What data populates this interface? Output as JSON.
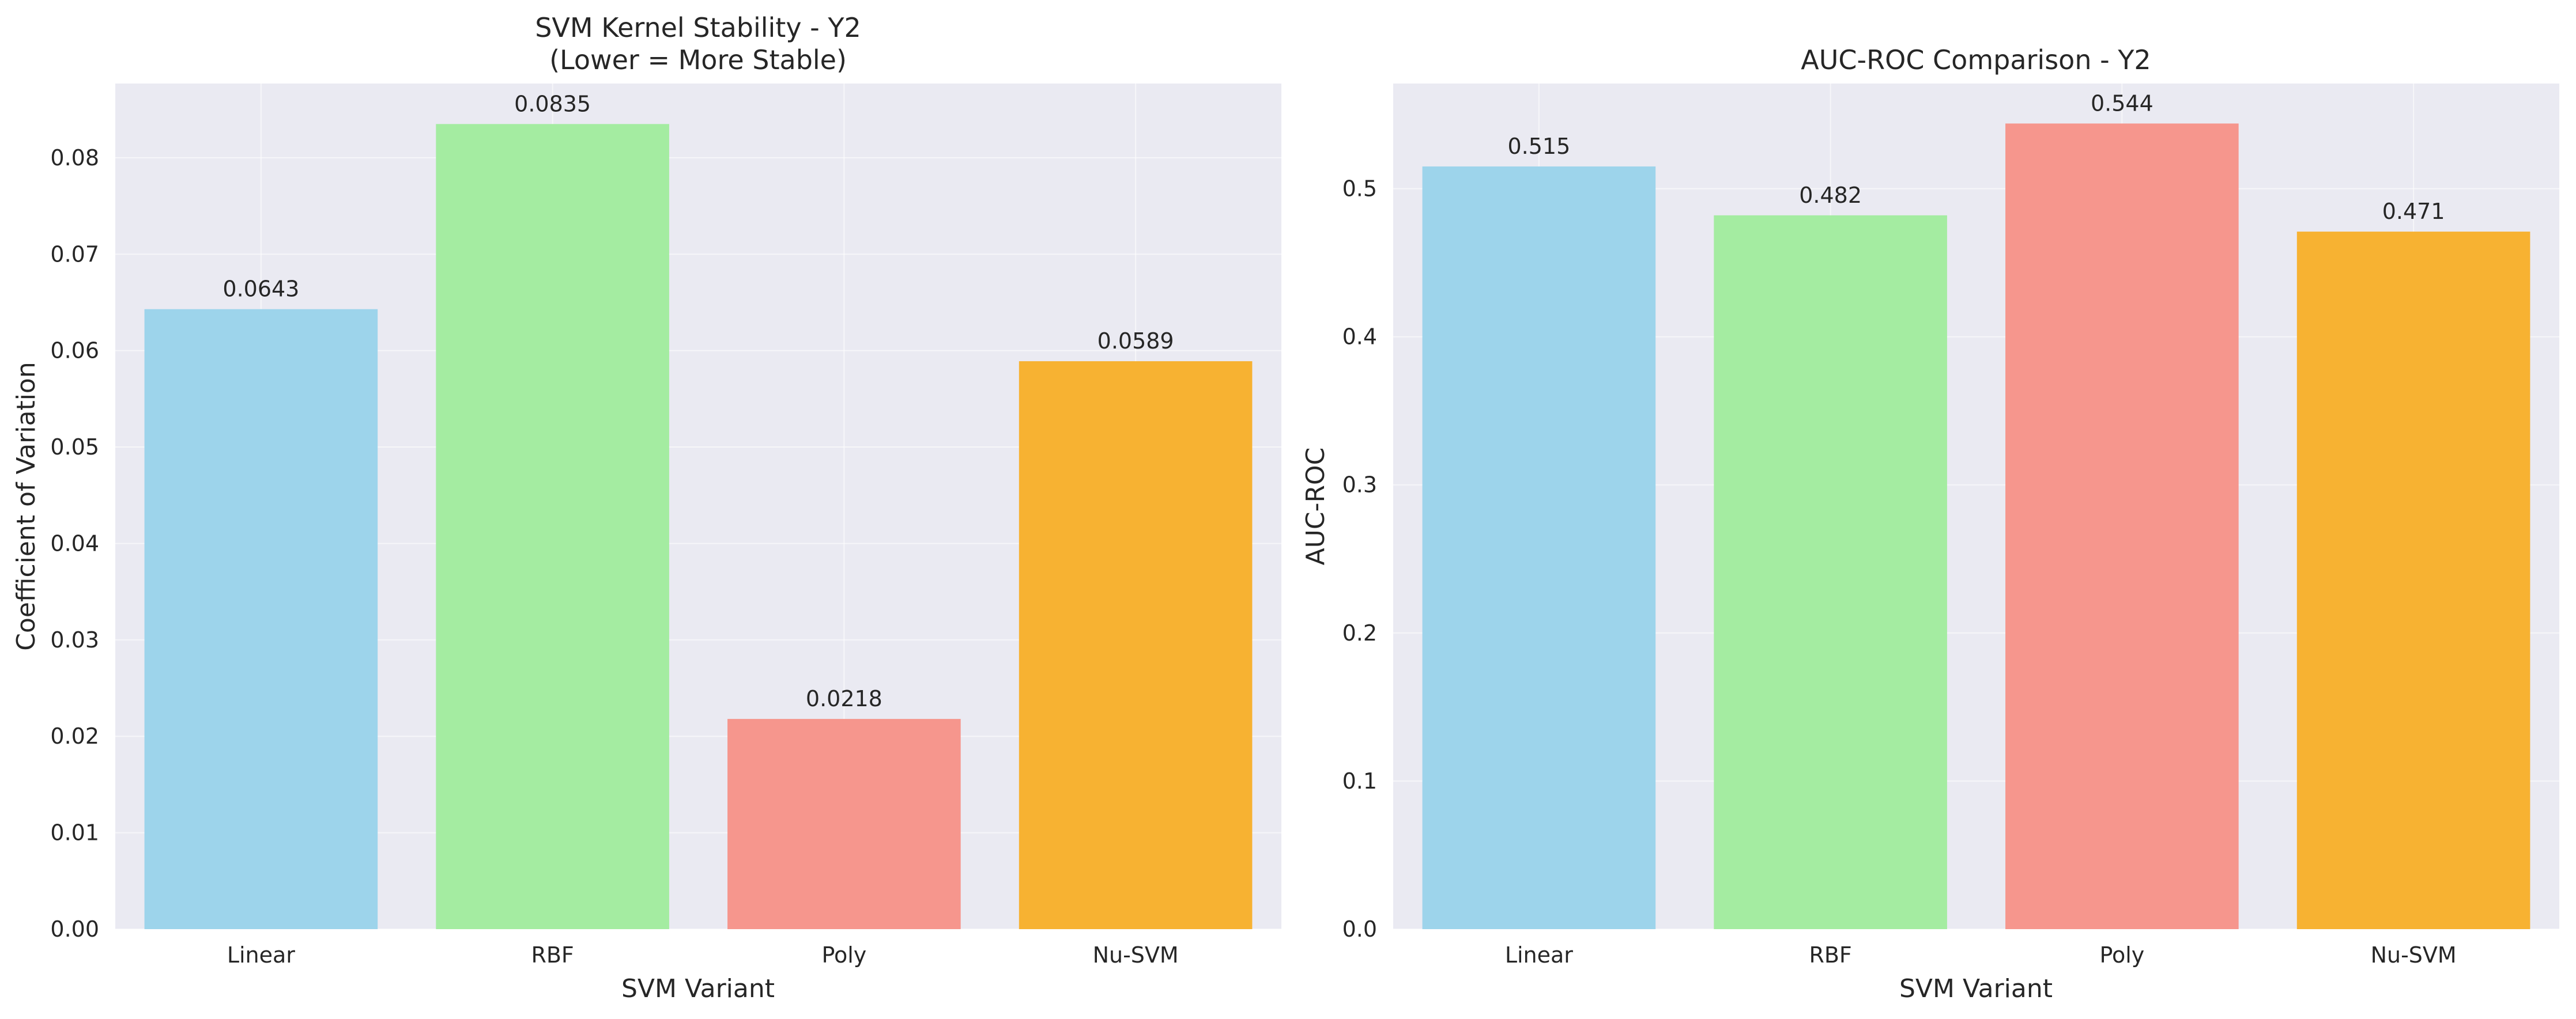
{
  "chart_data": [
    {
      "type": "bar",
      "title": [
        "SVM Kernel Stability - Y2",
        "(Lower = More Stable)"
      ],
      "xlabel": "SVM Variant",
      "ylabel": "Coefficient of Variation",
      "categories": [
        "Linear",
        "RBF",
        "Poly",
        "Nu-SVM"
      ],
      "values": [
        0.0643,
        0.0835,
        0.0218,
        0.0589
      ],
      "value_labels": [
        "0.0643",
        "0.0835",
        "0.0218",
        "0.0589"
      ],
      "colors": [
        "#9dd4eb",
        "#a4eca1",
        "#f6968d",
        "#f7b232"
      ],
      "ylim": [
        0,
        0.0877
      ],
      "yticks": [
        0,
        0.01,
        0.02,
        0.03,
        0.04,
        0.05,
        0.06,
        0.07,
        0.08
      ],
      "ytick_labels": [
        "0.00",
        "0.01",
        "0.02",
        "0.03",
        "0.04",
        "0.05",
        "0.06",
        "0.07",
        "0.08"
      ],
      "grid": true,
      "background": "#eaeaf2"
    },
    {
      "type": "bar",
      "title": [
        "AUC-ROC Comparison - Y2"
      ],
      "xlabel": "SVM Variant",
      "ylabel": "AUC-ROC",
      "categories": [
        "Linear",
        "RBF",
        "Poly",
        "Nu-SVM"
      ],
      "values": [
        0.515,
        0.482,
        0.544,
        0.471
      ],
      "value_labels": [
        "0.515",
        "0.482",
        "0.544",
        "0.471"
      ],
      "colors": [
        "#9dd4eb",
        "#a4eca1",
        "#f6968d",
        "#f7b232"
      ],
      "ylim": [
        0,
        0.571
      ],
      "yticks": [
        0,
        0.1,
        0.2,
        0.3,
        0.4,
        0.5
      ],
      "ytick_labels": [
        "0.0",
        "0.1",
        "0.2",
        "0.3",
        "0.4",
        "0.5"
      ],
      "grid": true,
      "background": "#eaeaf2"
    }
  ]
}
